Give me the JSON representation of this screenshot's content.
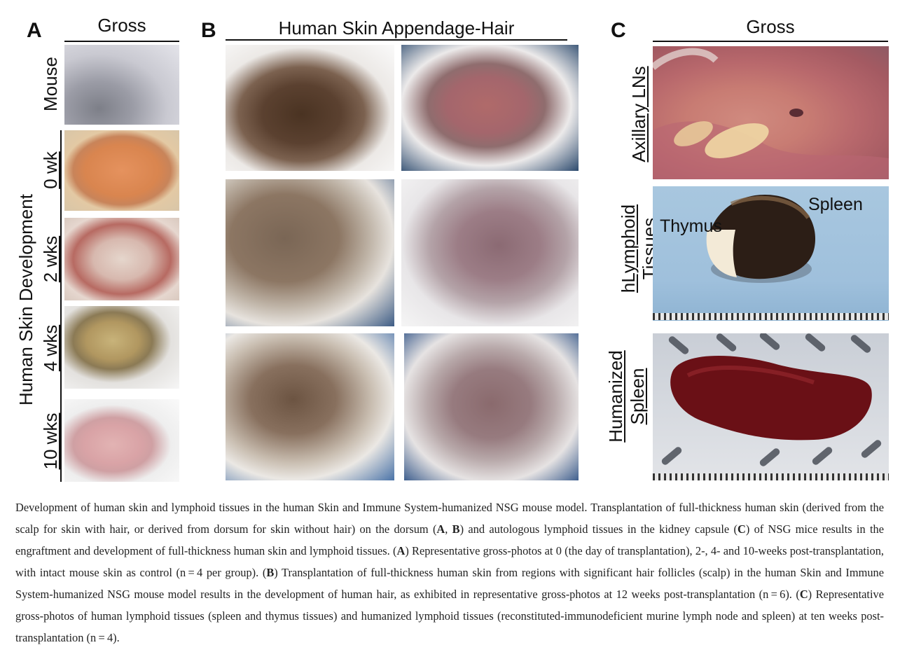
{
  "panels": {
    "A": {
      "letter": "A",
      "header": "Gross",
      "row_labels": [
        "Mouse",
        "0 wk",
        "2 wks",
        "4 wks",
        "10 wks"
      ],
      "group_label": "Human Skin Development"
    },
    "B": {
      "letter": "B",
      "header": "Human Skin Appendage-Hair"
    },
    "C": {
      "letter": "C",
      "header": "Gross",
      "row_labels": [
        "Axillary LNs",
        "hLymphoid Tissues",
        "Humanized Spleen"
      ],
      "row_label_lines": [
        [
          "Axillary LNs"
        ],
        [
          "hLymphoid",
          "Tissues"
        ],
        [
          "Humanized",
          "Spleen"
        ]
      ],
      "annotations": {
        "spleen": "Spleen",
        "thymus": "Thymus"
      }
    }
  },
  "caption": {
    "s1": "Development of human skin and lymphoid tissues in the human Skin and Immune System-humanized NSG mouse model. Transplantation of full-thickness human skin (derived from the scalp for skin with hair, or derived from dorsum for skin without hair) on the dorsum (",
    "ref_a": "A",
    "sep1": ", ",
    "ref_b": "B",
    "s2": ") and autologous lymphoid tissues in the kidney capsule (",
    "ref_c": "C",
    "s3": ") of NSG mice results in the engraftment and development of full-thickness human skin and lymphoid tissues. (",
    "ref_a2": "A",
    "s4": ") Representative gross-photos at 0 (the day of transplantation), 2-, 4- and 10-weeks post-transplantation, with intact mouse skin as control (n = 4 per group). (",
    "ref_b2": "B",
    "s5": ") Transplantation of full-thickness human skin from regions with significant hair follicles (scalp) in the human Skin and Immune System-humanized NSG mouse model results in the development of human hair, as exhibited in representative gross-photos at 12 weeks post-transplantation (n = 6). (",
    "ref_c2": "C",
    "s6": ") Representative gross-photos of human lymphoid tissues (spleen and thymus tissues) and humanized lymphoid tissues (reconstituted-immunodeficient murine lymph node and spleen) at ten weeks post-transplantation (n = 4)."
  }
}
